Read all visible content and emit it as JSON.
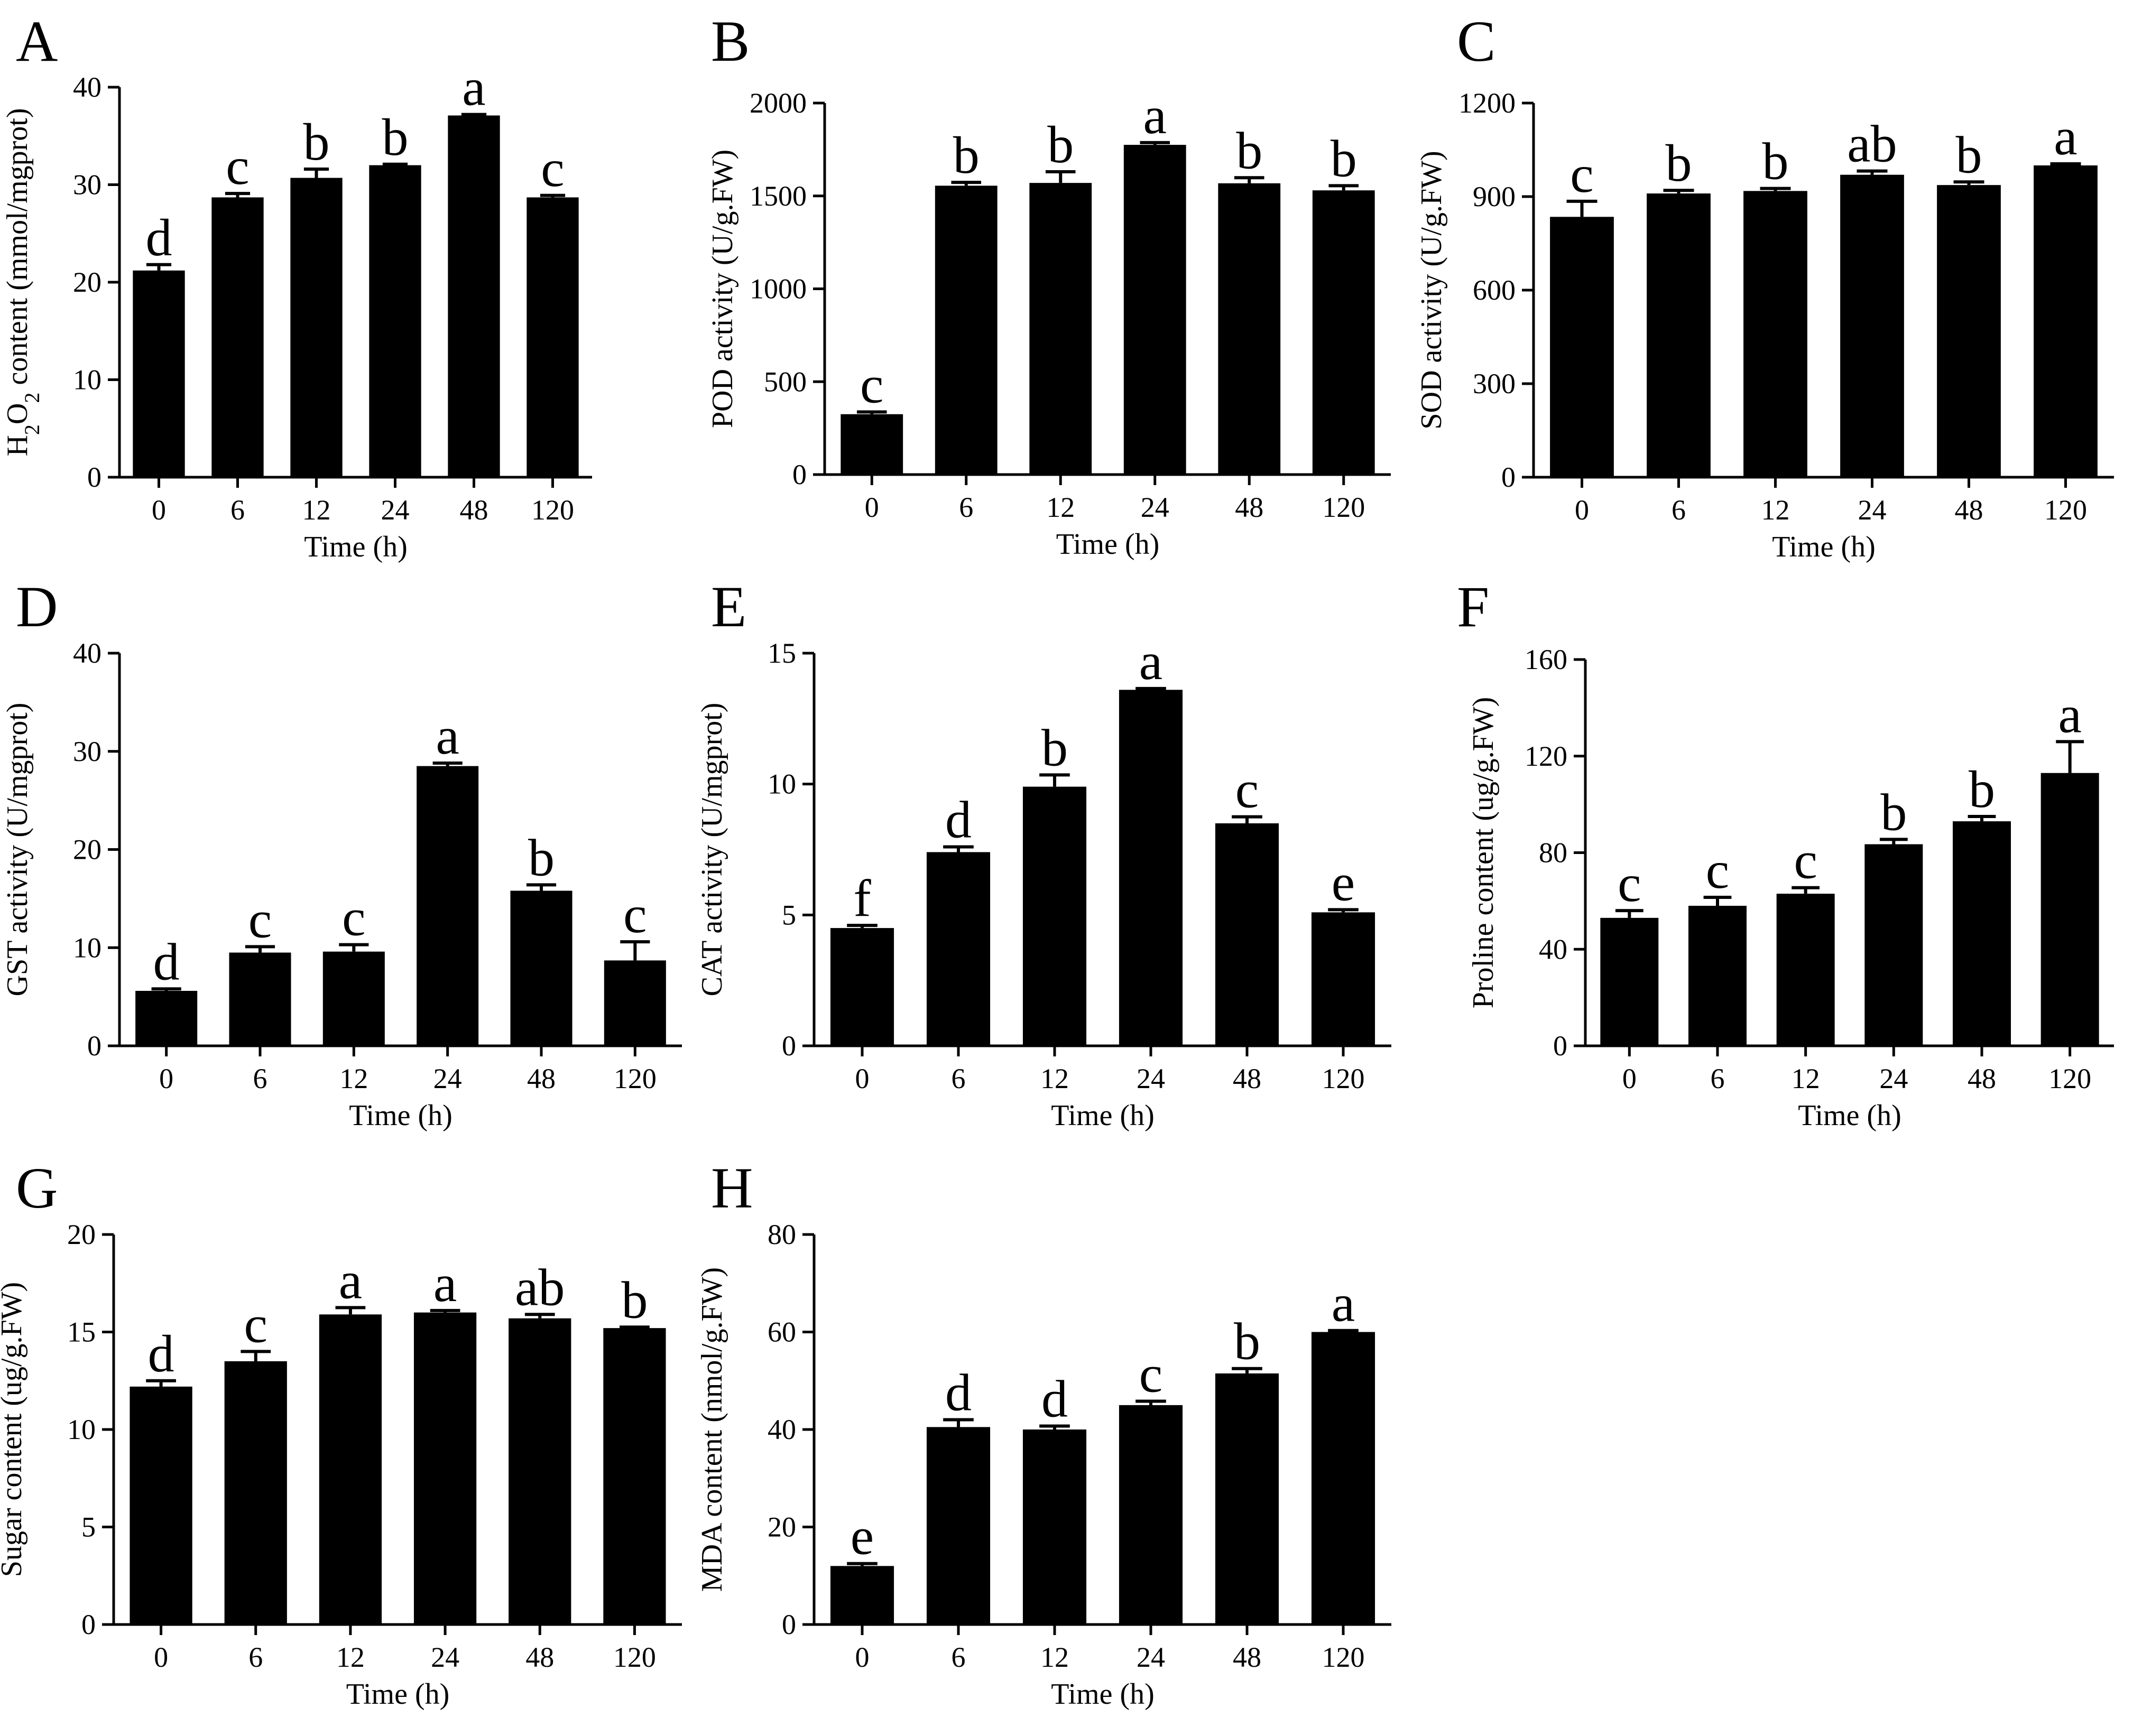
{
  "chart_data": [
    {
      "type": "bar",
      "panel": "A",
      "ylabel_parts": [
        {
          "text": "H",
          "sub": false
        },
        {
          "text": "2",
          "sub": true
        },
        {
          "text": "O",
          "sub": false
        },
        {
          "text": "2",
          "sub": true
        },
        {
          "text": " content (mmol/mgprot)",
          "sub": false
        }
      ],
      "xlabel": "Time (h)",
      "categories": [
        "0",
        "6",
        "12",
        "24",
        "48",
        "120"
      ],
      "values": [
        21.2,
        28.7,
        30.7,
        32.0,
        37.1,
        28.7
      ],
      "errors": [
        0.6,
        0.4,
        0.9,
        0.1,
        0.1,
        0.2
      ],
      "letters": [
        "d",
        "c",
        "b",
        "b",
        "a",
        "c"
      ],
      "ylim": [
        0,
        40
      ],
      "yticks": [
        0,
        10,
        20,
        30,
        40
      ],
      "ytick_labels": [
        "0",
        "10",
        "20",
        "30",
        "40"
      ]
    },
    {
      "type": "bar",
      "panel": "B",
      "ylabel": "POD activity (U/g.FW)",
      "xlabel": "Time (h)",
      "categories": [
        "0",
        "6",
        "12",
        "24",
        "48",
        "120"
      ],
      "values": [
        325,
        1555,
        1570,
        1775,
        1568,
        1530
      ],
      "errors": [
        12,
        18,
        60,
        12,
        30,
        25
      ],
      "letters": [
        "c",
        "b",
        "b",
        "a",
        "b",
        "b"
      ],
      "ylim": [
        0,
        2000
      ],
      "yticks": [
        0,
        500,
        1000,
        1500,
        2000
      ],
      "ytick_labels": [
        "0",
        "500",
        "1000",
        "1500",
        "2000"
      ]
    },
    {
      "type": "bar",
      "panel": "C",
      "ylabel": "SOD activity (U/g.FW)",
      "xlabel": "Time (h)",
      "categories": [
        "0",
        "6",
        "12",
        "24",
        "48",
        "120"
      ],
      "values": [
        835,
        910,
        918,
        970,
        937,
        1000
      ],
      "errors": [
        50,
        10,
        8,
        12,
        10,
        5
      ],
      "letters": [
        "c",
        "b",
        "b",
        "ab",
        "b",
        "a"
      ],
      "ylim": [
        0,
        1200
      ],
      "yticks": [
        0,
        300,
        600,
        900,
        1200
      ],
      "ytick_labels": [
        "0",
        "300",
        "600",
        "900",
        "1200"
      ]
    },
    {
      "type": "bar",
      "panel": "D",
      "ylabel": "GST activity (U/mgprot)",
      "xlabel": "Time (h)",
      "categories": [
        "0",
        "6",
        "12",
        "24",
        "48",
        "120"
      ],
      "values": [
        5.6,
        9.5,
        9.6,
        28.5,
        15.8,
        8.7
      ],
      "errors": [
        0.2,
        0.6,
        0.7,
        0.3,
        0.6,
        1.9
      ],
      "letters": [
        "d",
        "c",
        "c",
        "a",
        "b",
        "c"
      ],
      "ylim": [
        0,
        40
      ],
      "yticks": [
        0,
        10,
        20,
        30,
        40
      ],
      "ytick_labels": [
        "0",
        "10",
        "20",
        "30",
        "40"
      ]
    },
    {
      "type": "bar",
      "panel": "E",
      "ylabel": "CAT activity (U/mgprot)",
      "xlabel": "Time (h)",
      "categories": [
        "0",
        "6",
        "12",
        "24",
        "48",
        "120"
      ],
      "values": [
        4.5,
        7.4,
        9.9,
        13.6,
        8.5,
        5.1
      ],
      "errors": [
        0.1,
        0.2,
        0.45,
        0.05,
        0.25,
        0.1
      ],
      "letters": [
        "f",
        "d",
        "b",
        "a",
        "c",
        "e"
      ],
      "ylim": [
        0,
        15
      ],
      "yticks": [
        0,
        5,
        10,
        15
      ],
      "ytick_labels": [
        "0",
        "5",
        "10",
        "15"
      ]
    },
    {
      "type": "bar",
      "panel": "F",
      "ylabel": "Proline content (ug/g.FW)",
      "xlabel": "Time (h)",
      "categories": [
        "0",
        "6",
        "12",
        "24",
        "48",
        "120"
      ],
      "values": [
        53,
        58,
        63,
        83.5,
        93,
        113
      ],
      "errors": [
        3,
        3.5,
        2.5,
        2,
        2,
        13
      ],
      "letters": [
        "c",
        "c",
        "c",
        "b",
        "b",
        "a"
      ],
      "ylim": [
        0,
        160
      ],
      "yticks": [
        0,
        40,
        80,
        120,
        160
      ],
      "ytick_labels": [
        "0",
        "40",
        "80",
        "120",
        "160"
      ]
    },
    {
      "type": "bar",
      "panel": "G",
      "ylabel": "Sugar content (ug/g.FW)",
      "xlabel": "Time (h)",
      "categories": [
        "0",
        "6",
        "12",
        "24",
        "48",
        "120"
      ],
      "values": [
        12.2,
        13.5,
        15.9,
        16.0,
        15.7,
        15.2
      ],
      "errors": [
        0.3,
        0.5,
        0.35,
        0.1,
        0.2,
        0.05
      ],
      "letters": [
        "d",
        "c",
        "a",
        "a",
        "ab",
        "b"
      ],
      "ylim": [
        0,
        20
      ],
      "yticks": [
        0,
        5,
        10,
        15,
        20
      ],
      "ytick_labels": [
        "0",
        "5",
        "10",
        "15",
        "20"
      ]
    },
    {
      "type": "bar",
      "panel": "H",
      "ylabel": "MDA content (nmol/g.FW)",
      "xlabel": "Time (h)",
      "categories": [
        "0",
        "6",
        "12",
        "24",
        "48",
        "120"
      ],
      "values": [
        12,
        40.5,
        40,
        45,
        51.5,
        60
      ],
      "errors": [
        0.5,
        1.5,
        0.7,
        0.8,
        1,
        0.3
      ],
      "letters": [
        "e",
        "d",
        "d",
        "c",
        "b",
        "a"
      ],
      "ylim": [
        0,
        80
      ],
      "yticks": [
        0,
        20,
        40,
        60,
        80
      ],
      "ytick_labels": [
        "0",
        "20",
        "40",
        "60",
        "80"
      ]
    }
  ]
}
